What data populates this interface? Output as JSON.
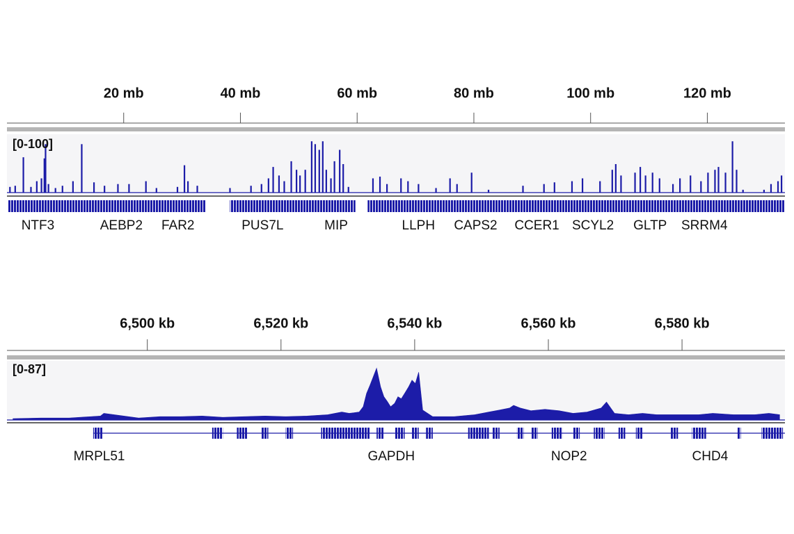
{
  "chart_data": [
    {
      "type": "bar",
      "range_label": "[0-100]",
      "color": "#1c1ca8",
      "xlim": [
        0,
        133.3
      ],
      "ylim": [
        0,
        100
      ],
      "xticks": [
        {
          "value": 20,
          "label": "20 mb"
        },
        {
          "value": 40,
          "label": "40 mb"
        },
        {
          "value": 60,
          "label": "60 mb"
        },
        {
          "value": 80,
          "label": "80 mb"
        },
        {
          "value": 100,
          "label": "100 mb"
        },
        {
          "value": 120,
          "label": "120 mb"
        }
      ],
      "x": [
        0.5,
        1.4,
        2.8,
        4.1,
        5.1,
        5.9,
        6.4,
        6.6,
        7.1,
        8.3,
        9.5,
        11.3,
        12.8,
        14.9,
        16.7,
        19.0,
        20.9,
        23.8,
        25.6,
        29.2,
        30.4,
        31.0,
        32.6,
        38.2,
        41.8,
        43.6,
        44.8,
        45.6,
        46.6,
        47.5,
        48.7,
        49.6,
        50.2,
        51.1,
        52.2,
        52.8,
        53.5,
        54.1,
        54.7,
        55.5,
        56.1,
        57.0,
        57.6,
        58.5,
        62.7,
        63.9,
        65.1,
        67.5,
        68.7,
        70.5,
        73.5,
        75.9,
        77.1,
        79.6,
        82.5,
        88.4,
        92.0,
        93.8,
        96.8,
        98.6,
        101.6,
        103.7,
        104.3,
        105.2,
        107.6,
        108.5,
        109.4,
        110.6,
        111.8,
        114.1,
        115.3,
        117.1,
        118.9,
        120.1,
        121.3,
        121.9,
        123.1,
        124.3,
        125.0,
        126.1,
        129.7,
        130.9,
        132.1,
        132.7
      ],
      "values": [
        10,
        12,
        62,
        10,
        20,
        25,
        60,
        85,
        15,
        8,
        12,
        20,
        85,
        18,
        12,
        15,
        15,
        20,
        8,
        10,
        48,
        20,
        12,
        8,
        12,
        15,
        25,
        45,
        30,
        20,
        55,
        40,
        30,
        40,
        90,
        85,
        75,
        90,
        40,
        25,
        55,
        75,
        50,
        10,
        25,
        28,
        15,
        25,
        20,
        15,
        8,
        25,
        15,
        35,
        5,
        12,
        15,
        18,
        20,
        25,
        20,
        40,
        50,
        30,
        35,
        45,
        30,
        35,
        25,
        15,
        25,
        30,
        20,
        35,
        40,
        45,
        35,
        90,
        40,
        5,
        5,
        15,
        20,
        30
      ],
      "feature_spans": [
        [
          0.2,
          34.1
        ],
        [
          38.2,
          59.7
        ],
        [
          61.8,
          133.3
        ]
      ],
      "genes": [
        {
          "name": "NTF3",
          "x": 5.3
        },
        {
          "name": "AEBP2",
          "x": 19.6
        },
        {
          "name": "FAR2",
          "x": 29.3
        },
        {
          "name": "PUS7L",
          "x": 43.8
        },
        {
          "name": "MIP",
          "x": 56.4
        },
        {
          "name": "LLPH",
          "x": 70.5
        },
        {
          "name": "CAPS2",
          "x": 80.3
        },
        {
          "name": "CCER1",
          "x": 90.8
        },
        {
          "name": "SCYL2",
          "x": 100.4
        },
        {
          "name": "GLTP",
          "x": 110.2
        },
        {
          "name": "SRRM4",
          "x": 119.5
        }
      ]
    },
    {
      "type": "area",
      "range_label": "[0-87]",
      "color": "#1c1ca8",
      "xlim": [
        6479,
        6595.4
      ],
      "ylim": [
        0,
        87
      ],
      "xticks": [
        {
          "value": 6500,
          "label": "6,500 kb"
        },
        {
          "value": 6520,
          "label": "6,520 kb"
        },
        {
          "value": 6540,
          "label": "6,540 kb"
        },
        {
          "value": 6560,
          "label": "6,560 kb"
        },
        {
          "value": 6580,
          "label": "6,580 kb"
        }
      ],
      "x": [
        6479.9,
        6484.1,
        6488.3,
        6493.0,
        6493.5,
        6498.7,
        6501.9,
        6505.0,
        6508.2,
        6511.3,
        6514.5,
        6517.6,
        6520.7,
        6523.9,
        6527.0,
        6529.1,
        6530.2,
        6531.7,
        6532.3,
        6532.8,
        6533.3,
        6533.8,
        6534.3,
        6534.9,
        6535.4,
        6535.9,
        6536.4,
        6537.0,
        6537.5,
        6538.0,
        6538.5,
        6539.1,
        6539.6,
        6540.1,
        6540.6,
        6541.2,
        6542.7,
        6545.9,
        6549.0,
        6551.1,
        6552.7,
        6554.2,
        6554.8,
        6555.8,
        6557.4,
        6559.5,
        6561.6,
        6563.7,
        6565.8,
        6567.9,
        6568.7,
        6569.9,
        6572.0,
        6574.1,
        6576.2,
        6578.3,
        6580.4,
        6582.5,
        6584.6,
        6587.7,
        6590.9,
        6593.0,
        6594.6
      ],
      "values": [
        2,
        3,
        3,
        6,
        10,
        3,
        5,
        5,
        6,
        4,
        5,
        6,
        5,
        6,
        8,
        12,
        10,
        12,
        20,
        40,
        52,
        65,
        78,
        50,
        35,
        28,
        20,
        25,
        35,
        32,
        40,
        50,
        60,
        55,
        72,
        15,
        5,
        5,
        8,
        12,
        15,
        18,
        22,
        18,
        14,
        16,
        14,
        10,
        12,
        18,
        27,
        10,
        8,
        10,
        8,
        8,
        8,
        8,
        10,
        8,
        8,
        10,
        8
      ],
      "exons": [
        [
          6491.9,
          6493.3
        ],
        [
          6509.7,
          6511.3
        ],
        [
          6513.4,
          6515.0
        ],
        [
          6517.1,
          6518.1
        ],
        [
          6520.7,
          6521.8
        ],
        [
          6526.0,
          6533.3
        ],
        [
          6534.3,
          6535.4
        ],
        [
          6537.0,
          6538.5
        ],
        [
          6539.6,
          6540.6
        ],
        [
          6541.7,
          6542.7
        ],
        [
          6548.0,
          6551.1
        ],
        [
          6551.6,
          6552.7
        ],
        [
          6555.3,
          6556.3
        ],
        [
          6557.4,
          6558.4
        ],
        [
          6560.5,
          6562.1
        ],
        [
          6563.7,
          6564.7
        ],
        [
          6566.8,
          6568.4
        ],
        [
          6570.5,
          6571.5
        ],
        [
          6573.1,
          6574.1
        ],
        [
          6578.3,
          6579.4
        ],
        [
          6581.5,
          6583.6
        ],
        [
          6588.3,
          6588.8
        ],
        [
          6591.9,
          6595.1
        ]
      ],
      "genes": [
        {
          "name": "MRPL51",
          "x": 6492.8
        },
        {
          "name": "GAPDH",
          "x": 6536.5
        },
        {
          "name": "NOP2",
          "x": 6563.1
        },
        {
          "name": "CHD4",
          "x": 6584.2
        }
      ]
    }
  ]
}
